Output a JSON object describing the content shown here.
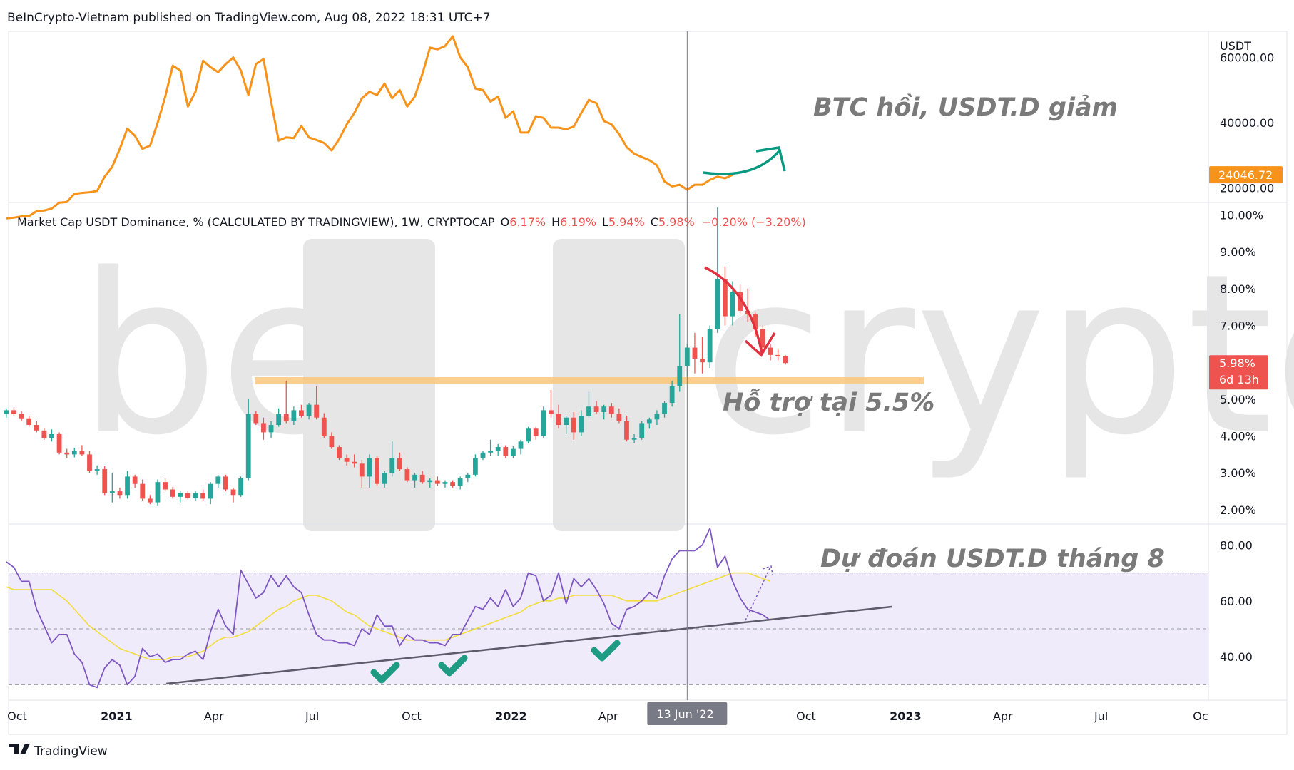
{
  "header": {
    "publisher_line": "BeInCrypto-Vietnam published on TradingView.com, Aug 08, 2022 18:31 UTC+7"
  },
  "footer": {
    "brand": "TradingView"
  },
  "watermark": {
    "text_left": "be",
    "text_right": "crypto"
  },
  "colors": {
    "btc_line": "#f7931a",
    "up_candle": "#26a69a",
    "down_candle": "#ef5350",
    "rsi_line": "#7e57c2",
    "rsi_ma": "#f7e34a",
    "support_band": "#f9c77a",
    "teal_arrow": "#089981",
    "red_arrow": "#e03140"
  },
  "x_axis": {
    "labels": [
      {
        "text": "Oct",
        "bold": false,
        "date": "2020-10"
      },
      {
        "text": "2021",
        "bold": true,
        "date": "2021-01"
      },
      {
        "text": "Apr",
        "bold": false,
        "date": "2021-04"
      },
      {
        "text": "Jul",
        "bold": false,
        "date": "2021-07"
      },
      {
        "text": "Oct",
        "bold": false,
        "date": "2021-10"
      },
      {
        "text": "2022",
        "bold": true,
        "date": "2022-01"
      },
      {
        "text": "Apr",
        "bold": false,
        "date": "2022-04"
      },
      {
        "text": "Oct",
        "bold": false,
        "date": "2022-10"
      },
      {
        "text": "2023",
        "bold": true,
        "date": "2023-01"
      },
      {
        "text": "Apr",
        "bold": false,
        "date": "2023-04"
      },
      {
        "text": "Jul",
        "bold": false,
        "date": "2023-07"
      },
      {
        "text": "Oc",
        "bold": false,
        "date": "2023-10"
      }
    ],
    "crosshair_label": "13 Jun '22"
  },
  "chart_data": [
    {
      "type": "line",
      "panel": "BTC price",
      "unit_label": "USDT",
      "y_ticks": [
        "60000.00",
        "40000.00",
        "20000.00"
      ],
      "ylim": [
        16000,
        68000
      ],
      "last_value_label": "24046.72",
      "annotation": "BTC hồi, USDT.D giảm",
      "series": [
        {
          "x_start": "2020-09-21",
          "x_step_days": 7,
          "values": [
            10700,
            10900,
            11300,
            11400,
            12900,
            13100,
            13700,
            15500,
            15700,
            18200,
            18500,
            18700,
            19100,
            23500,
            26500,
            32000,
            38200,
            36000,
            32000,
            33000,
            40000,
            48000,
            57500,
            56000,
            45000,
            49500,
            59000,
            57000,
            55500,
            58000,
            60000,
            56000,
            48500,
            58000,
            59500,
            46500,
            34500,
            35500,
            35300,
            39000,
            35500,
            34700,
            33800,
            31500,
            35000,
            39500,
            43000,
            47500,
            49500,
            48500,
            52000,
            47500,
            50000,
            45000,
            48000,
            55000,
            63000,
            62500,
            63500,
            66500,
            60000,
            57000,
            50500,
            50000,
            46500,
            48000,
            41500,
            43500,
            37000,
            37000,
            42000,
            41500,
            38500,
            38500,
            38000,
            38800,
            43000,
            47000,
            46000,
            40500,
            39500,
            36500,
            32500,
            30500,
            29500,
            28500,
            27000,
            22000,
            20500,
            21000,
            19500,
            21000,
            21000,
            22500,
            23500,
            23000,
            24046
          ]
        }
      ]
    },
    {
      "type": "candlestick",
      "panel": "USDT dominance",
      "legend": {
        "symbol": "Market Cap USDT Dominance, % (CALCULATED BY TRADINGVIEW), 1W, CRYPTOCAP",
        "o_label": "O",
        "o": "6.17%",
        "h_label": "H",
        "h": "6.19%",
        "l_label": "L",
        "l": "5.94%",
        "c_label": "C",
        "c": "5.98%",
        "change": "−0.20% (−3.20%)"
      },
      "y_ticks": [
        "10.00%",
        "9.00%",
        "8.00%",
        "7.00%",
        "6.00%",
        "5.00%",
        "4.00%",
        "3.00%",
        "2.00%"
      ],
      "ylim": [
        1.65,
        10.3
      ],
      "last_price_label": "5.98%",
      "countdown_label": "6d 13h",
      "support_level": 5.5,
      "annotation": "Hỗ trợ tại 5.5%",
      "x_start": "2020-09-21",
      "x_step_days": 7,
      "ohlc": [
        [
          4.6,
          4.75,
          4.5,
          4.7
        ],
        [
          4.7,
          4.78,
          4.55,
          4.6
        ],
        [
          4.6,
          4.67,
          4.4,
          4.48
        ],
        [
          4.48,
          4.55,
          4.25,
          4.3
        ],
        [
          4.3,
          4.4,
          4.1,
          4.15
        ],
        [
          4.15,
          4.22,
          3.9,
          3.95
        ],
        [
          3.95,
          4.18,
          3.85,
          4.05
        ],
        [
          4.05,
          4.1,
          3.5,
          3.55
        ],
        [
          3.55,
          3.65,
          3.4,
          3.5
        ],
        [
          3.5,
          3.68,
          3.42,
          3.6
        ],
        [
          3.6,
          3.75,
          3.45,
          3.5
        ],
        [
          3.5,
          3.6,
          3.0,
          3.05
        ],
        [
          3.05,
          3.2,
          2.95,
          3.1
        ],
        [
          3.1,
          3.18,
          2.4,
          2.45
        ],
        [
          2.45,
          3.0,
          2.2,
          2.5
        ],
        [
          2.5,
          2.6,
          2.3,
          2.4
        ],
        [
          2.4,
          3.05,
          2.3,
          2.9
        ],
        [
          2.9,
          2.95,
          2.6,
          2.7
        ],
        [
          2.7,
          2.82,
          2.25,
          2.3
        ],
        [
          2.3,
          2.4,
          2.15,
          2.2
        ],
        [
          2.2,
          2.82,
          2.1,
          2.75
        ],
        [
          2.75,
          2.85,
          2.5,
          2.55
        ],
        [
          2.55,
          2.62,
          2.3,
          2.35
        ],
        [
          2.35,
          2.5,
          2.2,
          2.45
        ],
        [
          2.45,
          2.52,
          2.28,
          2.32
        ],
        [
          2.32,
          2.5,
          2.25,
          2.45
        ],
        [
          2.45,
          2.55,
          2.25,
          2.3
        ],
        [
          2.3,
          2.75,
          2.15,
          2.7
        ],
        [
          2.7,
          2.95,
          2.6,
          2.9
        ],
        [
          2.9,
          2.95,
          2.5,
          2.55
        ],
        [
          2.55,
          2.6,
          2.2,
          2.4
        ],
        [
          2.4,
          2.9,
          2.35,
          2.85
        ],
        [
          2.85,
          5.0,
          2.8,
          4.6
        ],
        [
          4.6,
          4.68,
          4.3,
          4.35
        ],
        [
          4.35,
          4.5,
          3.9,
          4.1
        ],
        [
          4.1,
          4.4,
          3.95,
          4.3
        ],
        [
          4.3,
          4.75,
          4.25,
          4.6
        ],
        [
          4.6,
          5.5,
          4.35,
          4.4
        ],
        [
          4.4,
          4.8,
          4.3,
          4.7
        ],
        [
          4.7,
          4.85,
          4.5,
          4.55
        ],
        [
          4.55,
          4.9,
          4.45,
          4.85
        ],
        [
          4.85,
          5.35,
          4.45,
          4.5
        ],
        [
          4.5,
          4.62,
          3.95,
          4.0
        ],
        [
          4.0,
          4.1,
          3.65,
          3.7
        ],
        [
          3.7,
          3.75,
          3.35,
          3.4
        ],
        [
          3.4,
          3.5,
          3.2,
          3.3
        ],
        [
          3.3,
          3.5,
          3.15,
          3.25
        ],
        [
          3.25,
          3.35,
          2.6,
          2.9
        ],
        [
          2.9,
          3.5,
          2.6,
          3.4
        ],
        [
          3.4,
          3.45,
          2.65,
          2.7
        ],
        [
          2.7,
          3.05,
          2.6,
          3.0
        ],
        [
          3.0,
          3.85,
          2.9,
          3.4
        ],
        [
          3.4,
          3.55,
          3.05,
          3.1
        ],
        [
          3.1,
          3.15,
          2.75,
          2.8
        ],
        [
          2.8,
          3.0,
          2.6,
          2.95
        ],
        [
          2.95,
          3.05,
          2.7,
          2.75
        ],
        [
          2.75,
          2.85,
          2.6,
          2.8
        ],
        [
          2.8,
          2.9,
          2.65,
          2.7
        ],
        [
          2.7,
          2.8,
          2.6,
          2.75
        ],
        [
          2.75,
          2.8,
          2.6,
          2.65
        ],
        [
          2.65,
          2.9,
          2.55,
          2.85
        ],
        [
          2.85,
          3.0,
          2.75,
          2.95
        ],
        [
          2.95,
          3.5,
          2.9,
          3.4
        ],
        [
          3.4,
          3.6,
          3.35,
          3.55
        ],
        [
          3.55,
          3.9,
          3.45,
          3.6
        ],
        [
          3.6,
          3.78,
          3.45,
          3.7
        ],
        [
          3.7,
          3.75,
          3.4,
          3.45
        ],
        [
          3.45,
          3.72,
          3.4,
          3.65
        ],
        [
          3.65,
          3.9,
          3.5,
          3.85
        ],
        [
          3.85,
          4.25,
          3.8,
          4.2
        ],
        [
          4.2,
          4.25,
          3.9,
          4.0
        ],
        [
          4.0,
          4.8,
          3.95,
          4.7
        ],
        [
          4.7,
          5.25,
          4.5,
          4.6
        ],
        [
          4.6,
          4.85,
          4.2,
          4.3
        ],
        [
          4.3,
          4.55,
          4.05,
          4.5
        ],
        [
          4.5,
          4.65,
          3.9,
          4.1
        ],
        [
          4.1,
          4.7,
          4.0,
          4.55
        ],
        [
          4.55,
          5.2,
          4.5,
          4.8
        ],
        [
          4.8,
          4.95,
          4.6,
          4.65
        ],
        [
          4.65,
          4.85,
          4.45,
          4.8
        ],
        [
          4.8,
          4.9,
          4.5,
          4.6
        ],
        [
          4.6,
          4.75,
          4.35,
          4.4
        ],
        [
          4.4,
          4.55,
          3.85,
          3.9
        ],
        [
          3.9,
          4.05,
          3.8,
          3.95
        ],
        [
          3.95,
          4.4,
          3.9,
          4.35
        ],
        [
          4.35,
          4.5,
          4.2,
          4.45
        ],
        [
          4.45,
          4.7,
          4.3,
          4.6
        ],
        [
          4.6,
          4.95,
          4.5,
          4.9
        ],
        [
          4.9,
          5.5,
          4.8,
          5.35
        ],
        [
          5.35,
          7.3,
          5.2,
          5.9
        ],
        [
          5.9,
          6.5,
          5.6,
          6.4
        ],
        [
          6.4,
          6.8,
          5.7,
          6.1
        ],
        [
          6.1,
          6.7,
          5.7,
          6.0
        ],
        [
          6.0,
          7.0,
          5.85,
          6.9
        ],
        [
          6.9,
          10.2,
          6.8,
          8.25
        ],
        [
          8.25,
          8.6,
          7.0,
          7.25
        ],
        [
          7.25,
          8.2,
          7.0,
          7.9
        ],
        [
          7.9,
          8.1,
          7.3,
          7.4
        ],
        [
          7.4,
          8.0,
          7.1,
          7.3
        ],
        [
          7.3,
          7.35,
          6.7,
          6.9
        ],
        [
          6.9,
          7.0,
          6.25,
          6.4
        ],
        [
          6.4,
          6.5,
          6.05,
          6.2
        ],
        [
          6.2,
          6.35,
          6.05,
          6.17
        ],
        [
          6.17,
          6.19,
          5.94,
          5.98
        ]
      ]
    },
    {
      "type": "line",
      "panel": "RSI",
      "y_ticks": [
        "80.00",
        "60.00",
        "40.00"
      ],
      "ylim": [
        25,
        87
      ],
      "annotation": "Dự đoán USDT.D tháng 8",
      "series": [
        {
          "role": "rsi",
          "x_start": "2020-09-21",
          "x_step_days": 7,
          "values": [
            74,
            72,
            67,
            67,
            57,
            51,
            45,
            48,
            48,
            41,
            38,
            30,
            29,
            36,
            39,
            37,
            30,
            33,
            43,
            40,
            41,
            38,
            39,
            39,
            41,
            42,
            39,
            49,
            57,
            51,
            48,
            71,
            66,
            61,
            63,
            69,
            65,
            69,
            65,
            63,
            55,
            48,
            46,
            46,
            45,
            45,
            44,
            50,
            48,
            55,
            51,
            51,
            44,
            48,
            46,
            46,
            45,
            45,
            44,
            48,
            48,
            53,
            58,
            57,
            61,
            58,
            64,
            58,
            61,
            70,
            69,
            60,
            62,
            70,
            59,
            68,
            65,
            68,
            64,
            59,
            52,
            50,
            57,
            58,
            60,
            63,
            61,
            69,
            75,
            78,
            78,
            78,
            80,
            86,
            72,
            76,
            67,
            61,
            57,
            56,
            55,
            53
          ]
        },
        {
          "role": "rsi-ma",
          "x_start": "2020-09-21",
          "x_step_days": 7,
          "values": [
            65,
            64,
            64,
            64,
            64,
            64,
            64,
            62,
            60,
            57,
            54,
            51,
            49,
            47,
            45,
            43,
            42,
            41,
            40,
            39,
            39,
            39,
            40,
            40,
            40,
            41,
            42,
            44,
            46,
            47,
            47,
            48,
            49,
            51,
            53,
            55,
            57,
            58,
            60,
            61,
            62,
            62,
            61,
            60,
            58,
            56,
            55,
            53,
            51,
            50,
            49,
            48,
            47,
            46,
            46,
            46,
            46,
            46,
            46,
            47,
            48,
            49,
            50,
            51,
            52,
            53,
            54,
            55,
            56,
            58,
            59,
            60,
            60,
            61,
            61,
            62,
            62,
            62,
            62,
            62,
            62,
            61,
            60,
            60,
            60,
            60,
            60,
            61,
            62,
            63,
            64,
            65,
            66,
            67,
            68,
            69,
            70,
            70,
            70,
            69,
            68,
            67
          ]
        }
      ]
    }
  ]
}
